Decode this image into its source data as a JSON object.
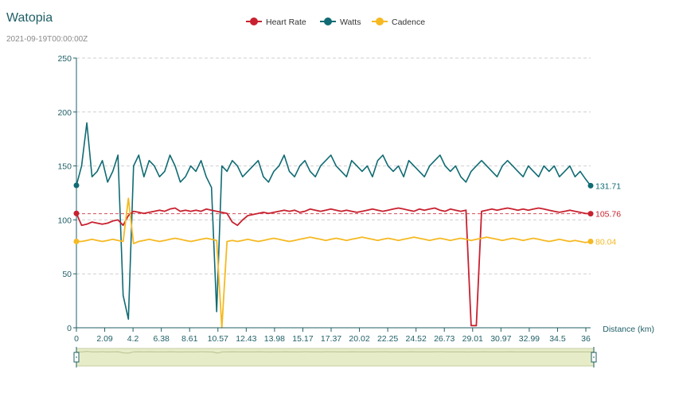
{
  "header": {
    "title": "Watopia",
    "timestamp": "2021-09-19T00:00:00Z"
  },
  "chart_data": {
    "type": "line",
    "x_axis_label": "Distance (km)",
    "x_tick_labels": [
      "0",
      "2.09",
      "4.2",
      "6.38",
      "8.61",
      "10.57",
      "12.43",
      "13.98",
      "15.17",
      "17.37",
      "20.02",
      "22.25",
      "24.52",
      "26.73",
      "29.01",
      "30.97",
      "32.99",
      "34.5",
      "36"
    ],
    "ylim": [
      0,
      250
    ],
    "y_ticks": [
      0,
      50,
      100,
      150,
      200,
      250
    ],
    "grid": "horizontal dashed",
    "legend_position": "top-center",
    "series": [
      {
        "name": "Heart Rate",
        "color": "#c8212f",
        "last_value": 105.76,
        "reference_line": 105.76,
        "values": [
          106,
          95,
          96,
          98,
          97,
          96,
          97,
          99,
          100,
          95,
          104,
          108,
          107,
          106,
          107,
          108,
          109,
          108,
          110,
          111,
          108,
          109,
          108,
          109,
          108,
          110,
          109,
          108,
          107,
          106,
          98,
          95,
          100,
          104,
          105,
          106,
          107,
          106,
          107,
          108,
          109,
          108,
          109,
          107,
          108,
          110,
          109,
          108,
          109,
          110,
          109,
          108,
          109,
          108,
          107,
          108,
          109,
          110,
          109,
          108,
          109,
          110,
          111,
          110,
          109,
          108,
          110,
          109,
          110,
          111,
          109,
          108,
          110,
          109,
          108,
          109,
          2,
          2,
          108,
          109,
          110,
          109,
          110,
          111,
          110,
          109,
          110,
          109,
          110,
          111,
          110,
          109,
          108,
          107,
          108,
          109,
          108,
          107,
          106,
          105.76
        ]
      },
      {
        "name": "Watts",
        "color": "#106b73",
        "last_value": 131.71,
        "values": [
          132,
          150,
          190,
          140,
          145,
          155,
          135,
          145,
          160,
          30,
          8,
          150,
          160,
          140,
          155,
          150,
          140,
          145,
          160,
          150,
          135,
          140,
          150,
          145,
          155,
          140,
          130,
          15,
          150,
          145,
          155,
          150,
          140,
          145,
          150,
          155,
          140,
          135,
          145,
          150,
          160,
          145,
          140,
          150,
          155,
          145,
          140,
          150,
          155,
          160,
          150,
          145,
          140,
          155,
          150,
          145,
          150,
          140,
          155,
          160,
          150,
          145,
          150,
          140,
          155,
          150,
          145,
          140,
          150,
          155,
          160,
          150,
          145,
          150,
          140,
          135,
          145,
          150,
          155,
          150,
          145,
          140,
          150,
          155,
          150,
          145,
          140,
          150,
          145,
          140,
          150,
          145,
          150,
          140,
          145,
          150,
          140,
          145,
          138,
          131.71
        ]
      },
      {
        "name": "Cadence",
        "color": "#f5b922",
        "last_value": 80.04,
        "values": [
          80,
          80,
          81,
          82,
          81,
          80,
          81,
          82,
          81,
          80,
          120,
          78,
          80,
          81,
          82,
          81,
          80,
          81,
          82,
          83,
          82,
          81,
          80,
          81,
          82,
          83,
          82,
          81,
          0,
          80,
          81,
          80,
          81,
          82,
          81,
          80,
          81,
          82,
          83,
          82,
          81,
          80,
          81,
          82,
          83,
          84,
          83,
          82,
          81,
          82,
          83,
          82,
          81,
          82,
          83,
          84,
          83,
          82,
          81,
          82,
          83,
          82,
          81,
          82,
          83,
          84,
          83,
          82,
          81,
          82,
          83,
          82,
          81,
          82,
          83,
          82,
          81,
          82,
          83,
          84,
          83,
          82,
          81,
          82,
          83,
          82,
          81,
          82,
          83,
          82,
          81,
          80,
          81,
          82,
          81,
          80,
          81,
          80,
          79,
          80.04
        ]
      }
    ]
  },
  "range_selector": {
    "fill_color": "#e6ecc8"
  }
}
